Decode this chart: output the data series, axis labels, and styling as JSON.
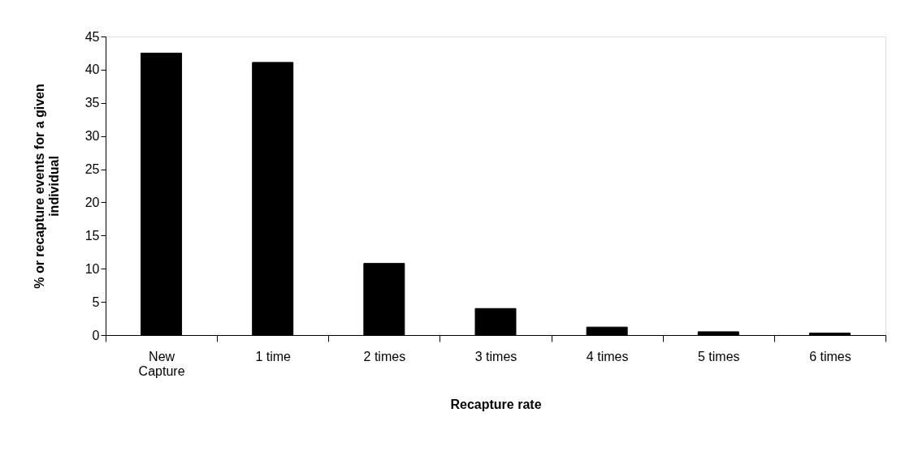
{
  "chart_data": {
    "type": "bar",
    "xlabel": "Recapture rate",
    "ylabel": "% or recapture events for a given individual",
    "categories": [
      "New Capture",
      "1 time",
      "2 times",
      "3 times",
      "4 times",
      "5 times",
      "6 times"
    ],
    "values": [
      42.5,
      41.1,
      10.8,
      4.0,
      1.2,
      0.5,
      0.3
    ],
    "color": "#000000",
    "ylim": [
      0,
      45
    ],
    "yticks": [
      0,
      5,
      10,
      15,
      20,
      25,
      30,
      35,
      40,
      45
    ],
    "grid": false
  }
}
